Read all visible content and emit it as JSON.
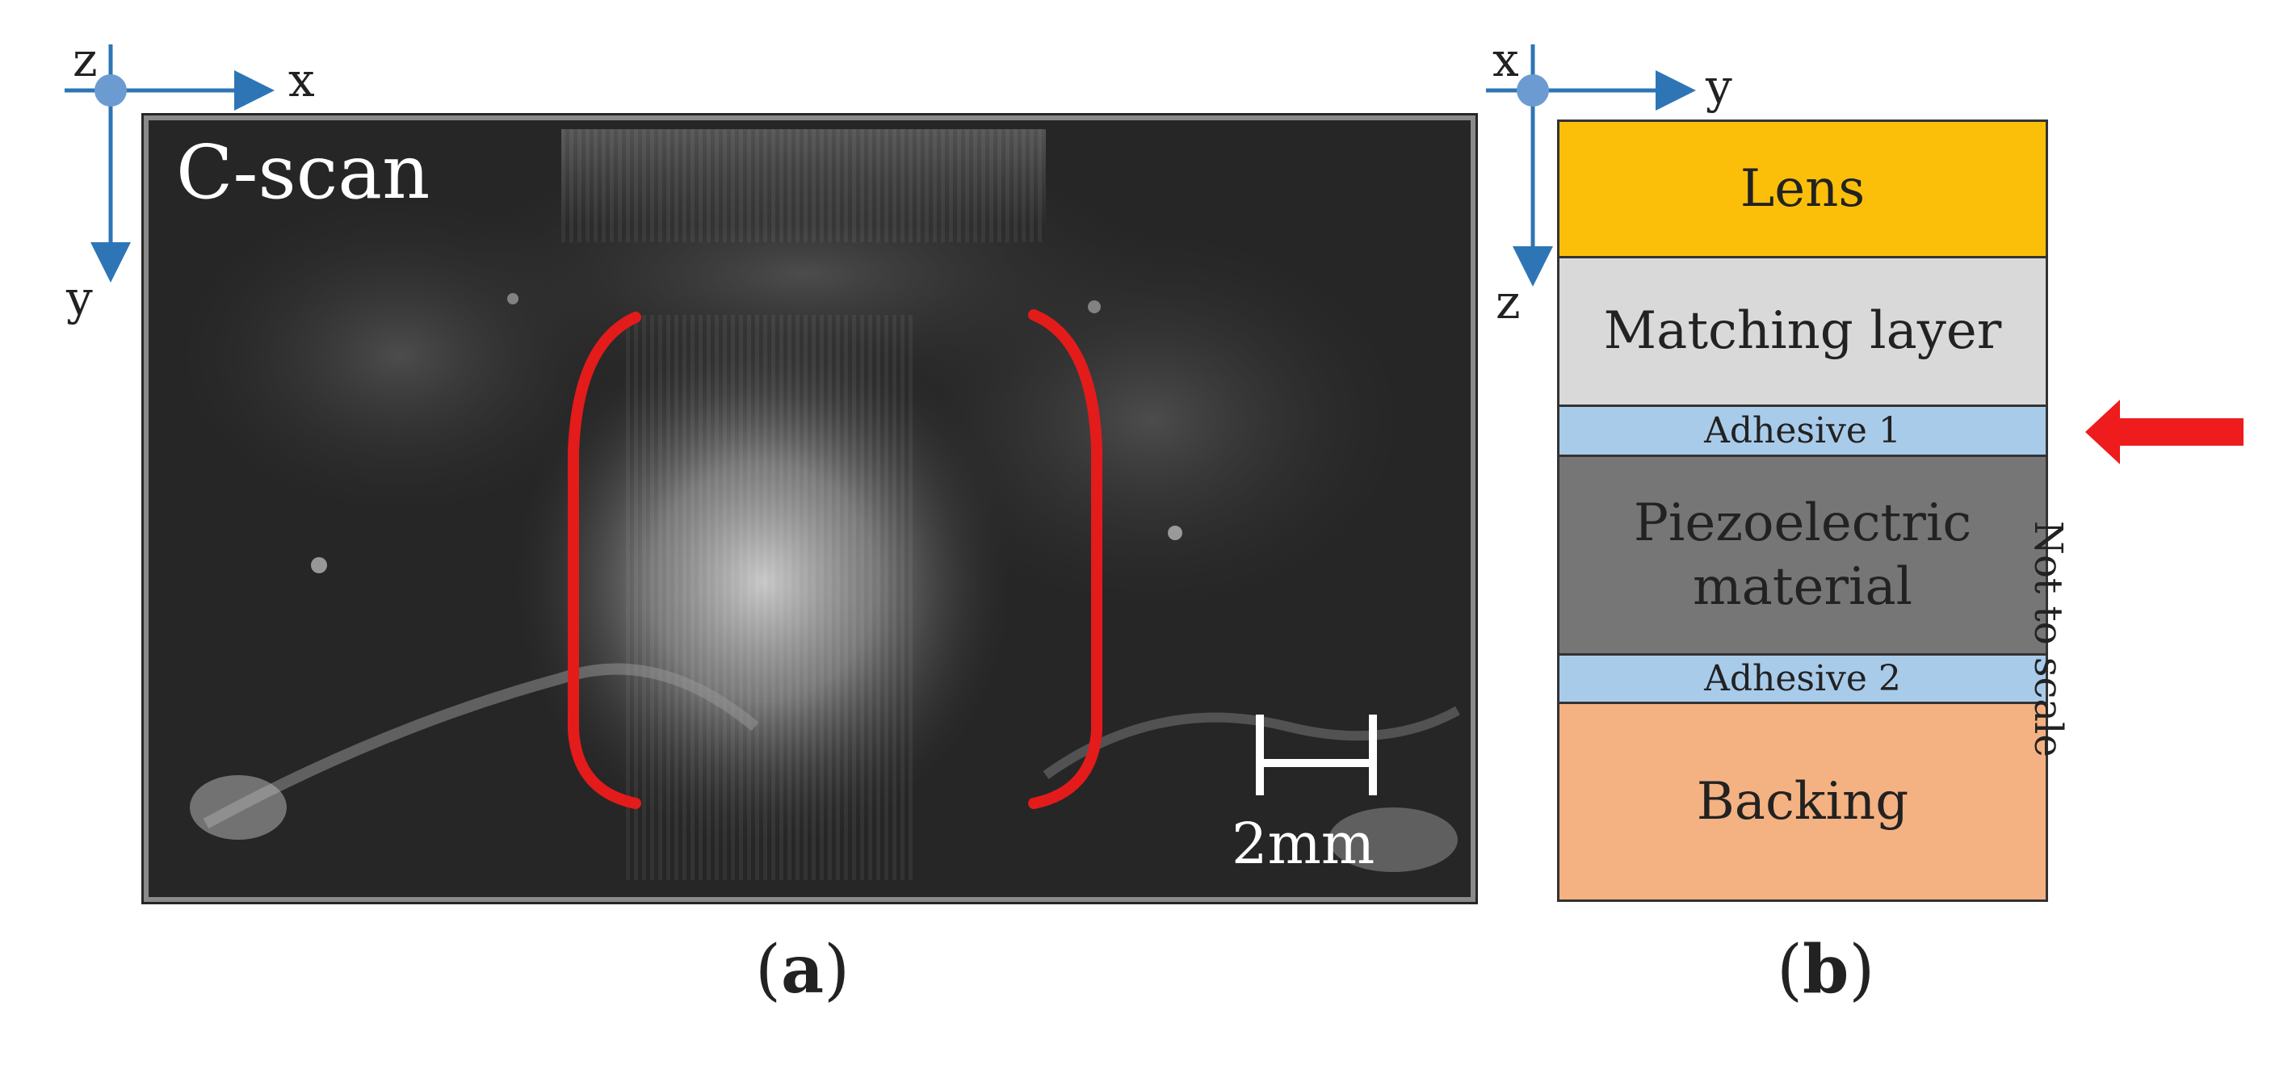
{
  "panel_a": {
    "caption": "a",
    "axes": {
      "origin_label": "z",
      "horizontal_label": "x",
      "vertical_label": "y"
    },
    "image_title": "C-scan",
    "scale_bar_label": "2mm",
    "highlight_color": "#e31b1b"
  },
  "panel_b": {
    "caption": "b",
    "axes": {
      "origin_label": "x",
      "horizontal_label": "y",
      "vertical_label": "z"
    },
    "layers": [
      {
        "label": "Lens",
        "color": "#fbbf0a"
      },
      {
        "label": "Matching layer",
        "color": "#d9d9d9"
      },
      {
        "label": "Adhesive 1",
        "color": "#a9cbea"
      },
      {
        "label": "Piezoelectric material",
        "color": "#767676"
      },
      {
        "label": "Adhesive 2",
        "color": "#a9cbea"
      },
      {
        "label": "Backing",
        "color": "#f4b182"
      }
    ],
    "note": "Not to scale",
    "arrow_color": "#ee1c1c",
    "axis_color": "#2e75b6"
  }
}
